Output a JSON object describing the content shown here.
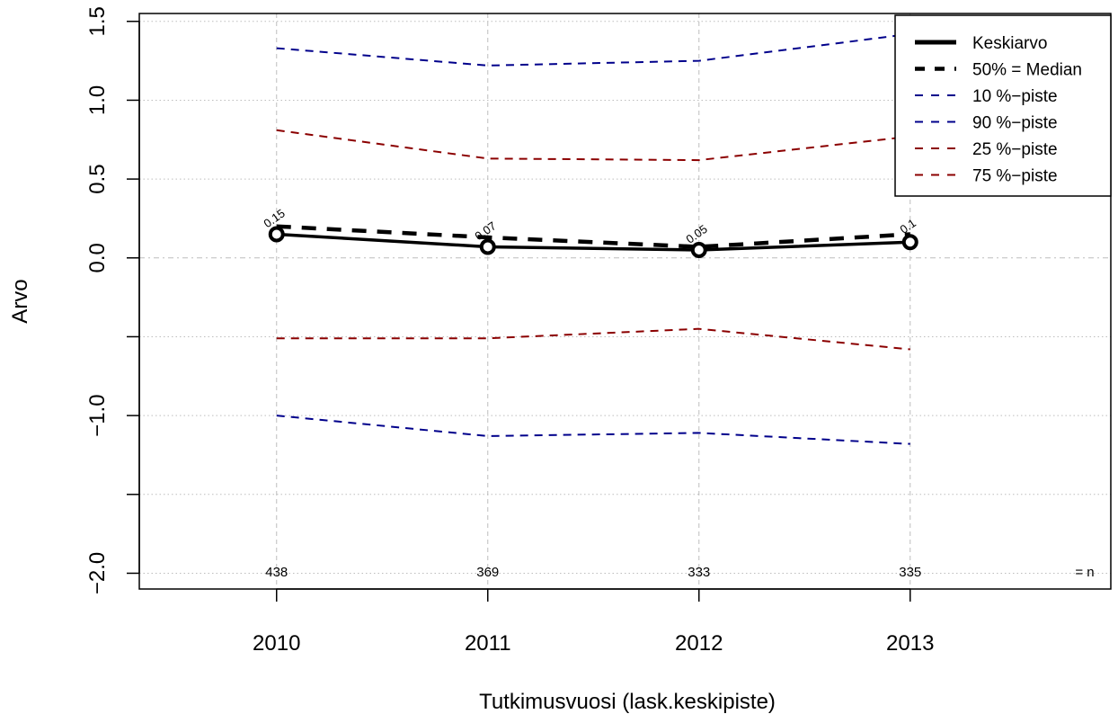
{
  "chart_data": {
    "type": "line",
    "x": [
      2010,
      2011,
      2012,
      2013
    ],
    "xlabel": "Tutkimusvuosi (lask.keskipiste)",
    "ylabel": "Arvo",
    "xlim": [
      2009.35,
      2013.95
    ],
    "ylim": [
      -2.1,
      1.55
    ],
    "y_ticks": [
      -2.0,
      -1.0,
      0.0,
      0.5,
      1.0,
      1.5
    ],
    "y_tick_labels": [
      "−2.0",
      "−1.0",
      "0.0",
      "0.5",
      "1.0",
      "1.5"
    ],
    "y_grid": [
      -2.0,
      -1.5,
      -1.0,
      -0.5,
      0.0,
      0.5,
      1.0,
      1.5
    ],
    "x_tick_labels": [
      "2010",
      "2011",
      "2012",
      "2013"
    ],
    "grid": true,
    "legend_position": "top-right",
    "series": [
      {
        "name": "Keskiarvo",
        "values": [
          0.15,
          0.07,
          0.05,
          0.1
        ],
        "color": "#000000",
        "style": "solid-bold",
        "markers": true
      },
      {
        "name": "50% = Median",
        "values": [
          0.2,
          0.13,
          0.07,
          0.15
        ],
        "color": "#000000",
        "style": "dashed-bold"
      },
      {
        "name": "10 %−piste",
        "values": [
          -1.0,
          -1.13,
          -1.11,
          -1.18
        ],
        "color": "#00008b",
        "style": "dashed"
      },
      {
        "name": "90 %−piste",
        "values": [
          1.33,
          1.22,
          1.25,
          1.42
        ],
        "color": "#00008b",
        "style": "dashed"
      },
      {
        "name": "25 %−piste",
        "values": [
          -0.51,
          -0.51,
          -0.45,
          -0.58
        ],
        "color": "#8b0000",
        "style": "dashed"
      },
      {
        "name": "75 %−piste",
        "values": [
          0.81,
          0.63,
          0.62,
          0.77
        ],
        "color": "#8b0000",
        "style": "dashed"
      }
    ],
    "point_labels": [
      "0.15",
      "0.07",
      "0.05",
      "0.1"
    ],
    "n_labels": [
      "438",
      "369",
      "333",
      "335"
    ],
    "n_suffix": "= n"
  }
}
